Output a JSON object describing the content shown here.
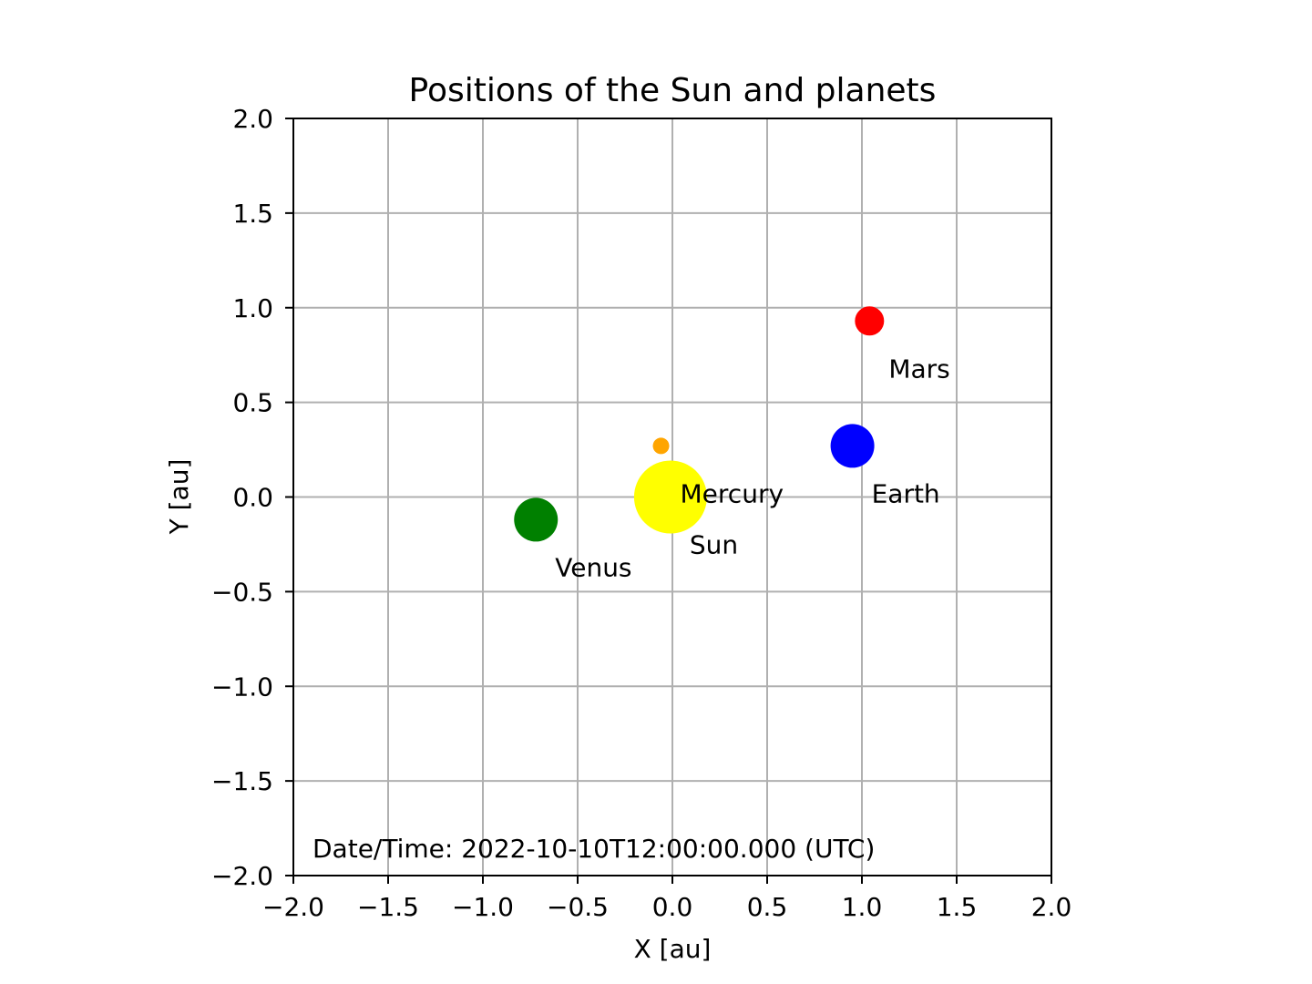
{
  "chart_data": {
    "type": "scatter",
    "title": "Positions of the Sun and planets",
    "xlabel": "X [au]",
    "ylabel": "Y [au]",
    "xlim": [
      -2.0,
      2.0
    ],
    "ylim": [
      -2.0,
      2.0
    ],
    "xticks": [
      -2.0,
      -1.5,
      -1.0,
      -0.5,
      0.0,
      0.5,
      1.0,
      1.5,
      2.0
    ],
    "yticks": [
      -2.0,
      -1.5,
      -1.0,
      -0.5,
      0.0,
      0.5,
      1.0,
      1.5,
      2.0
    ],
    "xtick_labels": [
      "−2.0",
      "−1.5",
      "−1.0",
      "−0.5",
      "0.0",
      "0.5",
      "1.0",
      "1.5",
      "2.0"
    ],
    "ytick_labels": [
      "−2.0",
      "−1.5",
      "−1.0",
      "−0.5",
      "0.0",
      "0.5",
      "1.0",
      "1.5",
      "2.0"
    ],
    "grid": true,
    "annotation": "Date/Time: 2022-10-10T12:00:00.000 (UTC)",
    "bodies": [
      {
        "name": "Sun",
        "x": -0.01,
        "y": 0.0,
        "color": "#ffff00",
        "size": "largest"
      },
      {
        "name": "Mercury",
        "x": -0.06,
        "y": 0.27,
        "color": "#ffa500",
        "size": "smallest"
      },
      {
        "name": "Venus",
        "x": -0.72,
        "y": -0.12,
        "color": "#008000",
        "size": "large"
      },
      {
        "name": "Earth",
        "x": 0.95,
        "y": 0.27,
        "color": "#0000ff",
        "size": "large"
      },
      {
        "name": "Mars",
        "x": 1.04,
        "y": 0.93,
        "color": "#ff0000",
        "size": "medium"
      }
    ]
  }
}
